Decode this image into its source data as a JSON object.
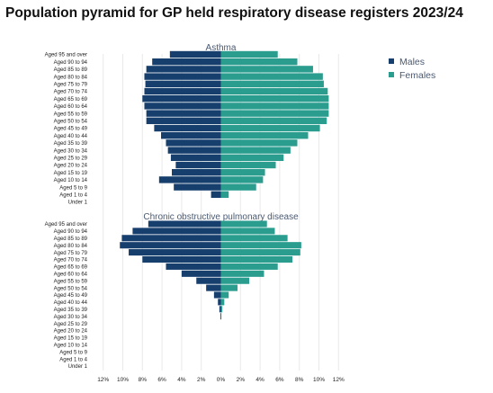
{
  "title": "Population pyramid for GP held respiratory disease registers 2023/24",
  "chart_data": {
    "type": "bar",
    "orientation": "horizontal-pyramid",
    "categories": [
      "Aged 95 and over",
      "Aged 90 to 94",
      "Aged 85 to 89",
      "Aged 80 to 84",
      "Aged 75 to 79",
      "Aged 70 to 74",
      "Aged 65 to 69",
      "Aged 60 to 64",
      "Aged 55 to 59",
      "Aged 50 to 54",
      "Aged 45 to 49",
      "Aged 40 to 44",
      "Aged 35 to 39",
      "Aged 30 to 34",
      "Aged 25 to 29",
      "Aged 20 to 24",
      "Aged 15 to 19",
      "Aged 10 to 14",
      "Aged 5 to 9",
      "Aged 1 to 4",
      "Under 1"
    ],
    "xlim": [
      -12,
      12
    ],
    "xticks": [
      "12%",
      "10%",
      "8%",
      "6%",
      "4%",
      "2%",
      "0%",
      "2%",
      "4%",
      "6%",
      "8%",
      "10%",
      "12%"
    ],
    "legend": {
      "position": "top-right",
      "entries": [
        "Males",
        "Females"
      ]
    },
    "colors": {
      "Males": "#173f6e",
      "Females": "#2a9d8f"
    },
    "panels": [
      {
        "title": "Asthma",
        "series": [
          {
            "name": "Males",
            "values": [
              5.2,
              7.0,
              7.6,
              7.8,
              7.7,
              7.8,
              8.0,
              7.8,
              7.6,
              7.6,
              6.8,
              6.1,
              5.6,
              5.4,
              5.1,
              4.6,
              5.0,
              6.3,
              4.8,
              1.0,
              0
            ]
          },
          {
            "name": "Females",
            "values": [
              5.8,
              7.8,
              9.4,
              10.4,
              10.5,
              10.9,
              11.0,
              11.0,
              11.0,
              10.8,
              10.1,
              8.9,
              7.8,
              7.1,
              6.4,
              5.6,
              4.5,
              4.3,
              3.6,
              0.8,
              0
            ]
          }
        ]
      },
      {
        "title": "Chronic obstructive pulmonary disease",
        "series": [
          {
            "name": "Males",
            "values": [
              7.4,
              9.0,
              10.1,
              10.3,
              9.4,
              8.0,
              5.6,
              4.0,
              2.5,
              1.5,
              0.7,
              0.3,
              0.15,
              0.05,
              0,
              0,
              0,
              0,
              0,
              0,
              0
            ]
          },
          {
            "name": "Females",
            "values": [
              4.7,
              5.5,
              6.8,
              8.2,
              8.1,
              7.3,
              5.8,
              4.4,
              2.9,
              1.7,
              0.8,
              0.35,
              0.15,
              0.05,
              0,
              0,
              0,
              0,
              0,
              0,
              0
            ]
          }
        ]
      }
    ]
  }
}
